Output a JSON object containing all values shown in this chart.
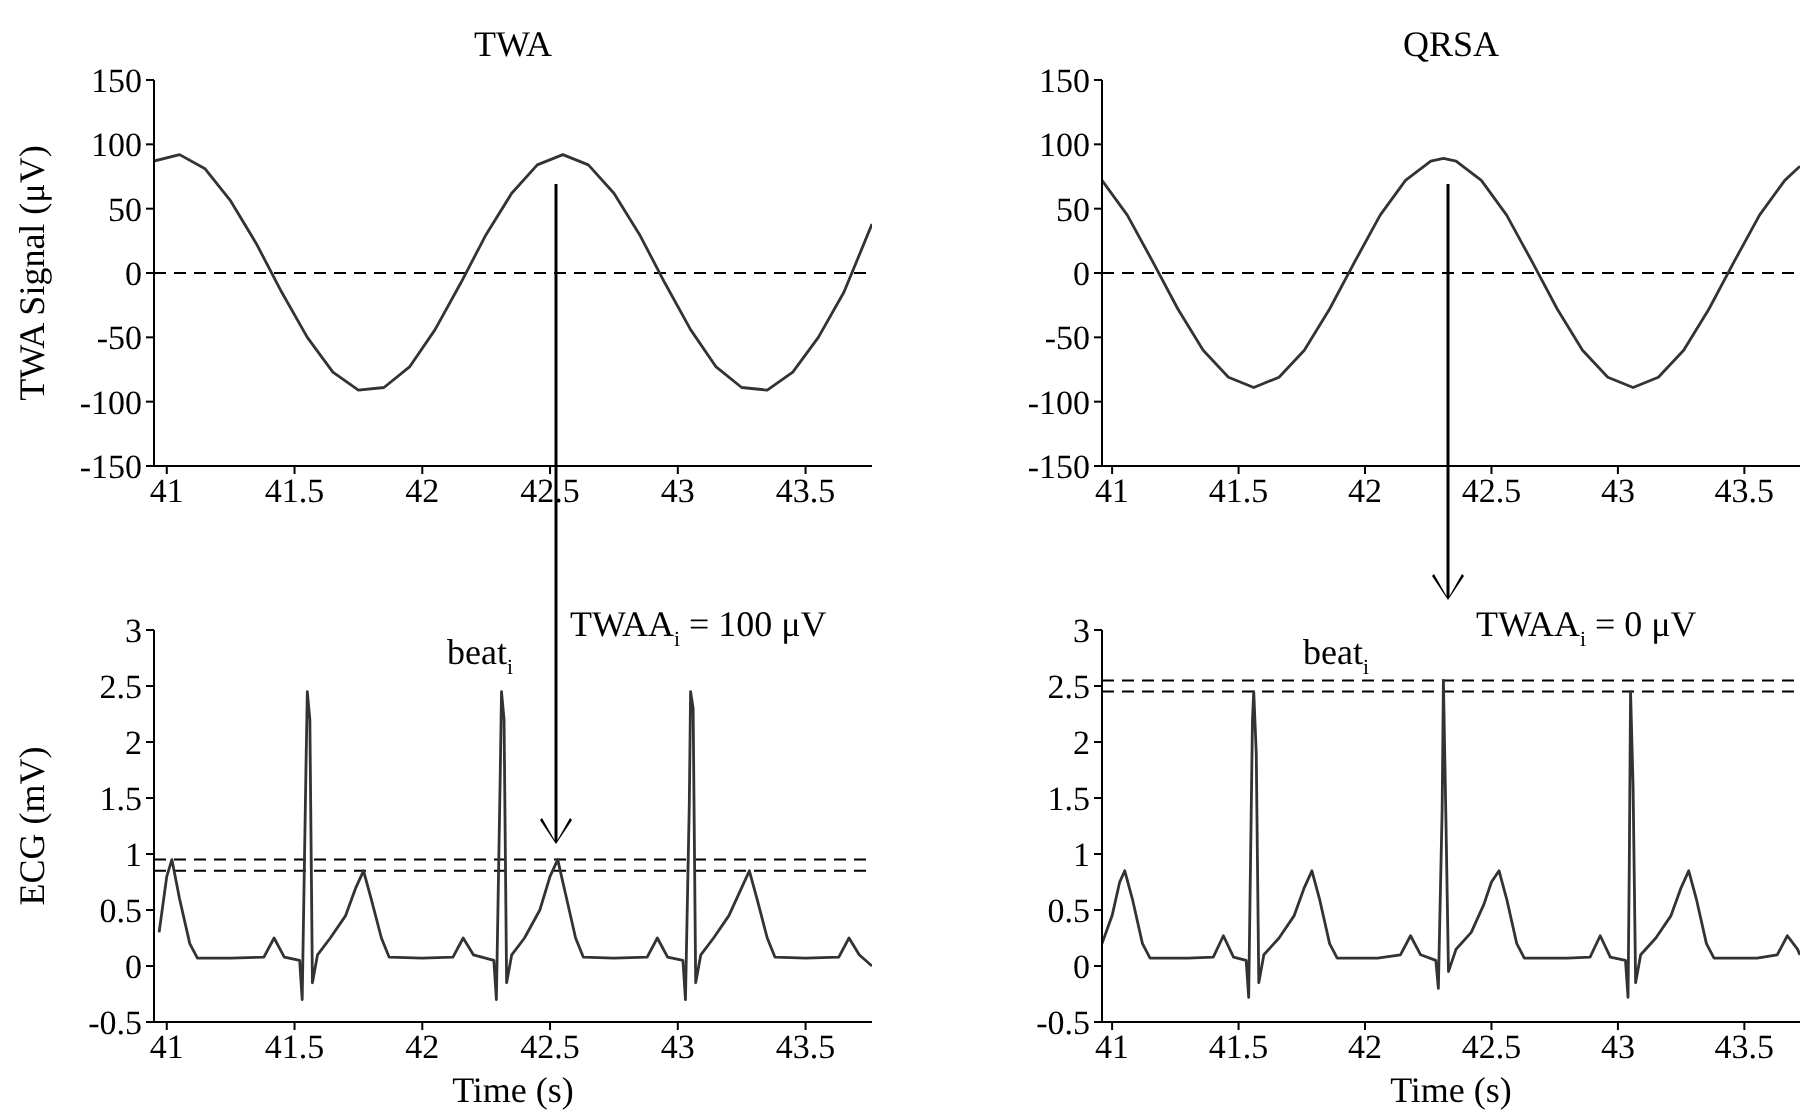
{
  "chart_data": [
    {
      "type": "line",
      "title": "TWA",
      "ylabel": "TWA Signal (μV)",
      "xlim": [
        40.95,
        43.76
      ],
      "xticks": [
        41,
        41.5,
        42,
        42.5,
        43,
        43.5
      ],
      "ylim": [
        -150,
        150
      ],
      "yticks": [
        -150,
        -100,
        -50,
        0,
        50,
        100,
        150
      ],
      "grid": false,
      "legend": false,
      "marker": "none",
      "line_style": "solid",
      "x": [
        40.95,
        41.05,
        41.15,
        41.25,
        41.35,
        41.45,
        41.55,
        41.65,
        41.75,
        41.85,
        41.95,
        42.05,
        42.15,
        42.25,
        42.35,
        42.45,
        42.55,
        42.65,
        42.75,
        42.85,
        42.95,
        43.05,
        43.15,
        43.25,
        43.35,
        43.45,
        43.55,
        43.65,
        43.76
      ],
      "series": [
        {
          "color": "#333333",
          "values": [
            87,
            92,
            81,
            56,
            23,
            -15,
            -50,
            -77,
            -91,
            -89,
            -73,
            -44,
            -8,
            30,
            62,
            84,
            92,
            84,
            62,
            30,
            -8,
            -44,
            -73,
            -89,
            -91,
            -77,
            -50,
            -15,
            38
          ]
        }
      ],
      "ref_lines": [
        {
          "axis": "y",
          "value": 0,
          "color": "#000000",
          "line_style": "dashed"
        }
      ]
    },
    {
      "type": "line",
      "title": "QRSA",
      "xlim": [
        40.96,
        43.72
      ],
      "xticks": [
        41,
        41.5,
        42,
        42.5,
        43,
        43.5
      ],
      "ylim": [
        -150,
        150
      ],
      "yticks": [
        -150,
        -100,
        -50,
        0,
        50,
        100,
        150
      ],
      "grid": false,
      "legend": false,
      "marker": "none",
      "line_style": "solid",
      "x": [
        40.96,
        41.06,
        41.16,
        41.26,
        41.36,
        41.46,
        41.56,
        41.66,
        41.76,
        41.86,
        41.96,
        42.06,
        42.16,
        42.26,
        42.31,
        42.36,
        42.46,
        42.56,
        42.66,
        42.76,
        42.86,
        42.96,
        43.06,
        43.16,
        43.26,
        43.36,
        43.46,
        43.56,
        43.66,
        43.72
      ],
      "series": [
        {
          "color": "#333333",
          "values": [
            72,
            45,
            9,
            -28,
            -60,
            -81,
            -89,
            -81,
            -60,
            -28,
            9,
            45,
            72,
            87,
            89,
            87,
            72,
            45,
            9,
            -28,
            -60,
            -81,
            -89,
            -81,
            -60,
            -28,
            9,
            45,
            72,
            83
          ]
        }
      ],
      "ref_lines": [
        {
          "axis": "y",
          "value": 0,
          "color": "#000000",
          "line_style": "dashed"
        }
      ]
    },
    {
      "type": "line",
      "xlabel": "Time (s)",
      "ylabel": "ECG (mV)",
      "xlim": [
        40.95,
        43.76
      ],
      "xticks": [
        41,
        41.5,
        42,
        42.5,
        43,
        43.5
      ],
      "ylim": [
        -0.5,
        3
      ],
      "yticks": [
        -0.5,
        0,
        0.5,
        1,
        1.5,
        2,
        2.5,
        3
      ],
      "grid": false,
      "legend": false,
      "marker": "none",
      "line_style": "solid",
      "x": [
        40.97,
        41.0,
        41.02,
        41.05,
        41.09,
        41.12,
        41.25,
        41.38,
        41.42,
        41.46,
        41.52,
        41.53,
        41.545,
        41.55,
        41.56,
        41.57,
        41.59,
        41.64,
        41.7,
        41.74,
        41.77,
        41.8,
        41.84,
        41.87,
        42.0,
        42.12,
        42.16,
        42.2,
        42.28,
        42.29,
        42.305,
        42.31,
        42.32,
        42.33,
        42.35,
        42.4,
        42.46,
        42.5,
        42.53,
        42.56,
        42.6,
        42.63,
        42.75,
        42.88,
        42.92,
        42.96,
        43.02,
        43.03,
        43.045,
        43.05,
        43.06,
        43.07,
        43.09,
        43.14,
        43.2,
        43.25,
        43.28,
        43.31,
        43.35,
        43.38,
        43.5,
        43.63,
        43.67,
        43.71,
        43.76
      ],
      "series": [
        {
          "color": "#333333",
          "values": [
            0.3,
            0.8,
            0.95,
            0.6,
            0.2,
            0.07,
            0.07,
            0.08,
            0.25,
            0.08,
            0.05,
            -0.3,
            1.8,
            2.45,
            2.2,
            -0.15,
            0.1,
            0.25,
            0.45,
            0.7,
            0.85,
            0.6,
            0.25,
            0.08,
            0.07,
            0.08,
            0.25,
            0.1,
            0.05,
            -0.3,
            1.7,
            2.45,
            2.2,
            -0.15,
            0.1,
            0.25,
            0.5,
            0.8,
            0.95,
            0.65,
            0.25,
            0.08,
            0.07,
            0.08,
            0.25,
            0.08,
            0.05,
            -0.3,
            1.45,
            2.45,
            2.3,
            -0.15,
            0.1,
            0.25,
            0.45,
            0.7,
            0.85,
            0.6,
            0.25,
            0.08,
            0.07,
            0.08,
            0.25,
            0.1,
            0.0
          ]
        }
      ],
      "ref_lines": [
        {
          "axis": "y",
          "value": 0.95,
          "color": "#000000",
          "line_style": "dashed"
        },
        {
          "axis": "y",
          "value": 0.85,
          "color": "#000000",
          "line_style": "dashed"
        }
      ],
      "annotations": [
        "beat$_{i}$",
        "TWAA$_{i}$ = 100 μV"
      ]
    },
    {
      "type": "line",
      "xlabel": "Time (s)",
      "xlim": [
        40.96,
        43.72
      ],
      "xticks": [
        41,
        41.5,
        42,
        42.5,
        43,
        43.5
      ],
      "ylim": [
        -0.5,
        3
      ],
      "yticks": [
        -0.5,
        0,
        0.5,
        1,
        1.5,
        2,
        2.5,
        3
      ],
      "grid": false,
      "legend": false,
      "marker": "none",
      "line_style": "solid",
      "x": [
        40.96,
        41.0,
        41.03,
        41.05,
        41.08,
        41.12,
        41.15,
        41.3,
        41.4,
        41.44,
        41.48,
        41.53,
        41.54,
        41.555,
        41.56,
        41.57,
        41.58,
        41.6,
        41.66,
        41.72,
        41.76,
        41.79,
        41.82,
        41.86,
        41.89,
        42.05,
        42.14,
        42.18,
        42.22,
        42.28,
        42.29,
        42.305,
        42.31,
        42.32,
        42.33,
        42.36,
        42.42,
        42.47,
        42.5,
        42.53,
        42.56,
        42.6,
        42.63,
        42.8,
        42.89,
        42.93,
        42.97,
        43.03,
        43.04,
        43.045,
        43.05,
        43.06,
        43.07,
        43.09,
        43.15,
        43.21,
        43.25,
        43.28,
        43.31,
        43.35,
        43.38,
        43.55,
        43.63,
        43.67,
        43.71,
        43.72
      ],
      "series": [
        {
          "color": "#333333",
          "values": [
            0.2,
            0.45,
            0.75,
            0.85,
            0.6,
            0.2,
            0.07,
            0.07,
            0.08,
            0.27,
            0.08,
            0.05,
            -0.28,
            2.2,
            2.45,
            1.9,
            -0.15,
            0.1,
            0.25,
            0.45,
            0.7,
            0.85,
            0.6,
            0.2,
            0.07,
            0.07,
            0.1,
            0.27,
            0.1,
            0.05,
            -0.2,
            1.4,
            2.55,
            1.3,
            -0.05,
            0.15,
            0.3,
            0.55,
            0.75,
            0.85,
            0.6,
            0.2,
            0.07,
            0.07,
            0.08,
            0.27,
            0.08,
            0.05,
            -0.28,
            0.9,
            2.45,
            1.6,
            -0.15,
            0.1,
            0.25,
            0.45,
            0.7,
            0.85,
            0.6,
            0.2,
            0.07,
            0.07,
            0.1,
            0.27,
            0.15,
            0.1
          ]
        }
      ],
      "ref_lines": [
        {
          "axis": "y",
          "value": 2.55,
          "color": "#000000",
          "line_style": "dashed"
        },
        {
          "axis": "y",
          "value": 2.45,
          "color": "#000000",
          "line_style": "dashed"
        }
      ],
      "annotations": [
        "beat$_{i}$",
        "TWAA$_{i}$ = 0 μV"
      ]
    }
  ]
}
